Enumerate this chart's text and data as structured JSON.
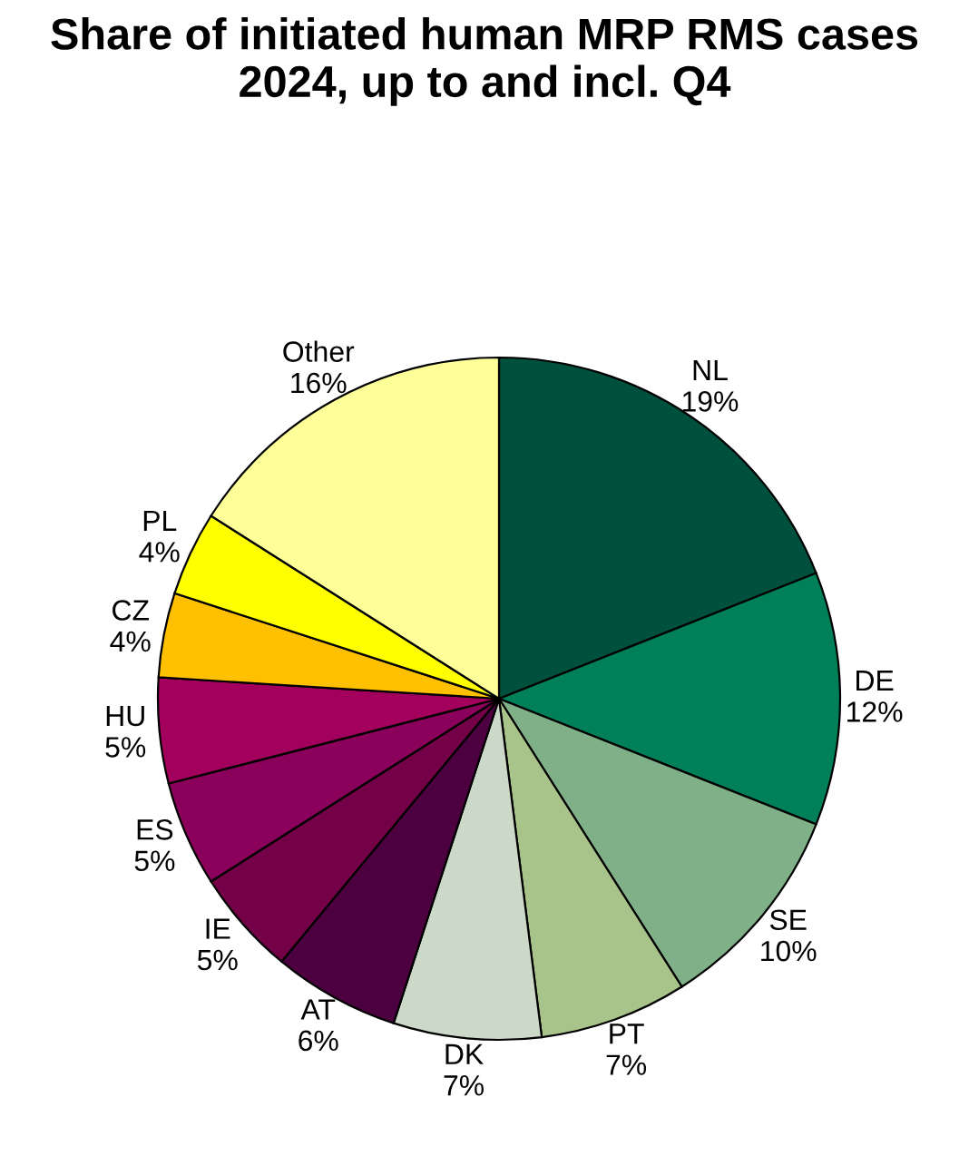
{
  "chart_data": {
    "type": "pie",
    "title": "Share of initiated human MRP RMS cases 2024, up to and incl. Q4",
    "categories": [
      "NL",
      "DE",
      "SE",
      "PT",
      "DK",
      "AT",
      "IE",
      "ES",
      "HU",
      "CZ",
      "PL",
      "Other"
    ],
    "values": [
      19,
      12,
      10,
      7,
      7,
      6,
      5,
      5,
      5,
      4,
      4,
      16
    ],
    "value_labels": [
      "19%",
      "12%",
      "10%",
      "7%",
      "7%",
      "6%",
      "5%",
      "5%",
      "5%",
      "4%",
      "4%",
      "16%"
    ],
    "colors": [
      "#00503e",
      "#008058",
      "#80b088",
      "#a8c48a",
      "#ccd8c8",
      "#4c0040",
      "#740048",
      "#8a005a",
      "#a3005e",
      "#ffc000",
      "#ffff00",
      "#ffff99"
    ]
  }
}
